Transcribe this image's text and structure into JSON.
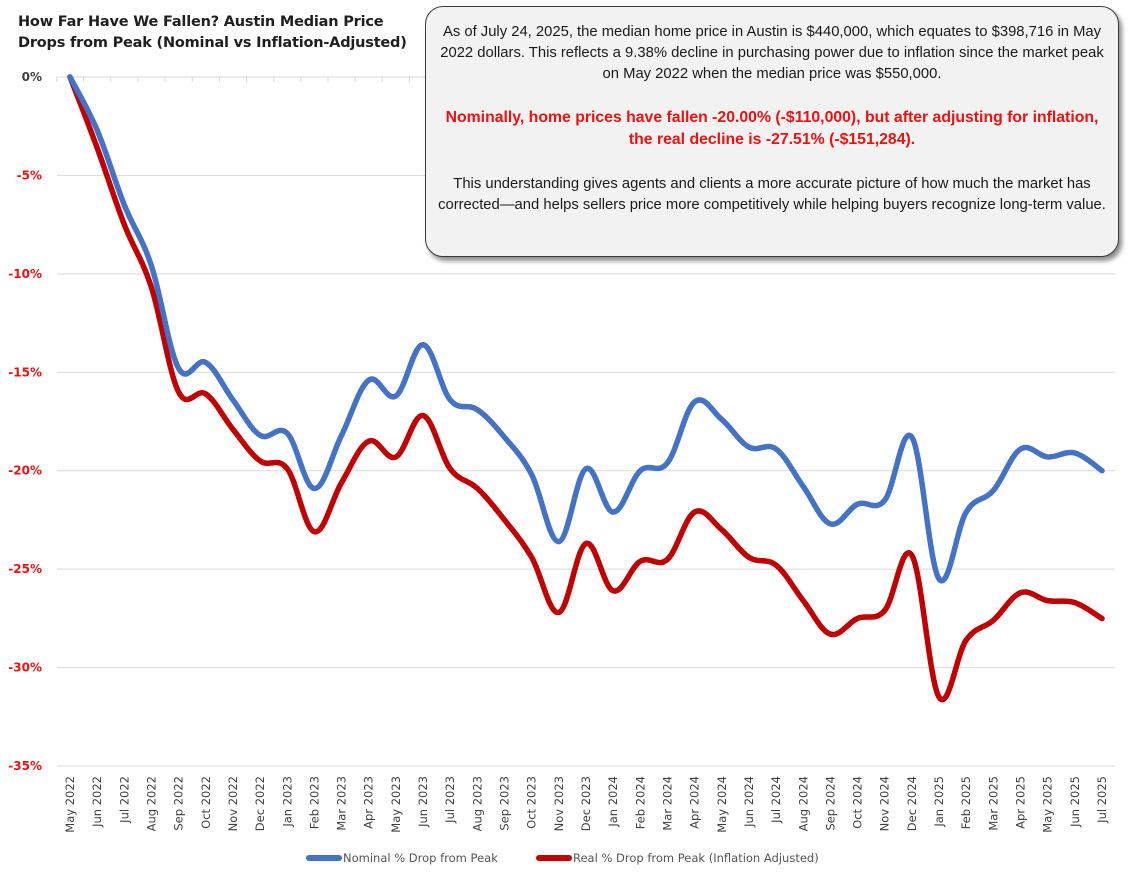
{
  "title": "How Far Have We Fallen? Austin Median Price Drops from Peak (Nominal vs Inflation-Adjusted)",
  "callout": {
    "paragraph1": "As of July 24, 2025, the median home price in Austin is $440,000, which equates to $398,716 in May 2022 dollars. This reflects a 9.38% decline in purchasing power due to inflation since the market peak on May 2022 when the median price was $550,000.",
    "paragraph2": "Nominally, home prices have fallen -20.00% (-$110,000), but after adjusting for inflation, the real decline is -27.51% (-$151,284).",
    "paragraph3": "This understanding gives agents and clients a more accurate picture of how much the market has corrected—and helps sellers price more competitively while helping buyers recognize long-term value.",
    "highlight_color": "#ee1111"
  },
  "chart_data": {
    "type": "line",
    "title": "How Far Have We Fallen? Austin Median Price Drops from Peak (Nominal vs Inflation-Adjusted)",
    "xlabel": "",
    "ylabel": "",
    "ylim": [
      -35,
      0
    ],
    "yticks": [
      0,
      -5,
      -10,
      -15,
      -20,
      -25,
      -30,
      -35
    ],
    "ytick_labels": [
      "0%",
      "-5%",
      "-10%",
      "-15%",
      "-20%",
      "-25%",
      "-30%",
      "-35%"
    ],
    "ytick_colors": {
      "zero": "#404040",
      "negative": "#ee1111"
    },
    "grid": true,
    "smooth": true,
    "legend_position": "bottom",
    "categories": [
      "May 2022",
      "Jun 2022",
      "Jul 2022",
      "Aug 2022",
      "Sep 2022",
      "Oct 2022",
      "Nov 2022",
      "Dec 2022",
      "Jan 2023",
      "Feb 2023",
      "Mar 2023",
      "Apr 2023",
      "May 2023",
      "Jun 2023",
      "Jul 2023",
      "Aug 2023",
      "Sep 2023",
      "Oct 2023",
      "Nov 2023",
      "Dec 2023",
      "Jan 2024",
      "Feb 2024",
      "Mar 2024",
      "Apr 2024",
      "May 2024",
      "Jun 2024",
      "Jul 2024",
      "Aug 2024",
      "Sep 2024",
      "Oct 2024",
      "Nov 2024",
      "Dec 2024",
      "Jan 2025",
      "Feb 2025",
      "Mar 2025",
      "Apr 2025",
      "May 2025",
      "Jun 2025",
      "Jul 2025"
    ],
    "series": [
      {
        "name": "Nominal % Drop from Peak",
        "color": "#4472c4",
        "values": [
          0,
          -2.7,
          -6.5,
          -9.6,
          -14.8,
          -14.5,
          -16.4,
          -18.2,
          -18.1,
          -20.9,
          -18.2,
          -15.4,
          -16.2,
          -13.6,
          -16.4,
          -16.9,
          -18.3,
          -20.2,
          -23.6,
          -19.9,
          -22.1,
          -20.0,
          -19.6,
          -16.5,
          -17.4,
          -18.8,
          -18.9,
          -20.8,
          -22.7,
          -21.7,
          -21.5,
          -18.3,
          -25.5,
          -22.1,
          -21.0,
          -18.9,
          -19.3,
          -19.1,
          -20.0
        ]
      },
      {
        "name": "Real % Drop from Peak (Inflation Adjusted)",
        "color": "#c00000",
        "values": [
          0,
          -3.6,
          -7.5,
          -10.7,
          -16.0,
          -16.1,
          -17.9,
          -19.5,
          -19.9,
          -23.1,
          -20.6,
          -18.5,
          -19.3,
          -17.2,
          -19.9,
          -20.9,
          -22.5,
          -24.4,
          -27.2,
          -23.7,
          -26.1,
          -24.6,
          -24.5,
          -22.1,
          -23.0,
          -24.4,
          -24.8,
          -26.6,
          -28.3,
          -27.5,
          -27.1,
          -24.3,
          -31.5,
          -28.6,
          -27.6,
          -26.2,
          -26.6,
          -26.7,
          -27.51
        ]
      }
    ]
  }
}
